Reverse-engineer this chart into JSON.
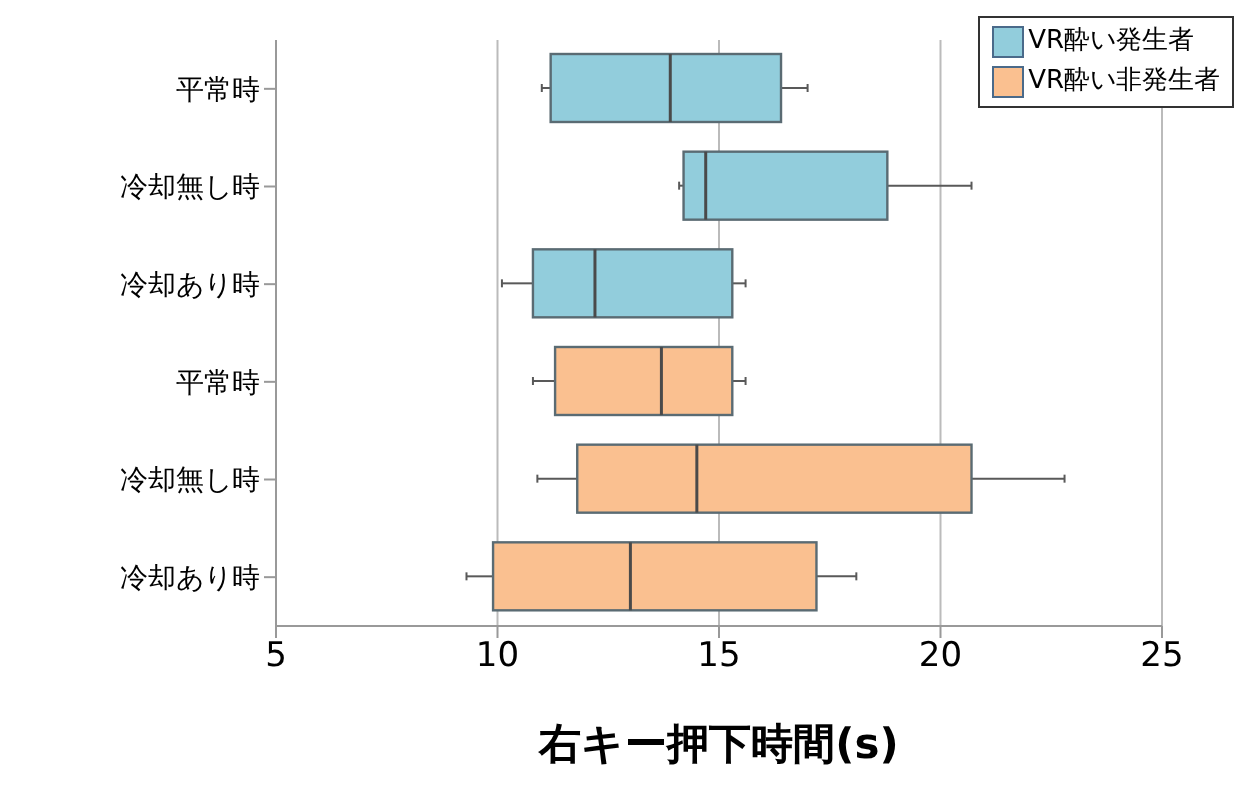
{
  "chart_data": {
    "type": "box",
    "orientation": "horizontal",
    "xlabel": "右キー押下時間(s)",
    "categories": [
      "平常時",
      "冷却無し時",
      "冷却あり時",
      "平常時",
      "冷却無し時",
      "冷却あり時"
    ],
    "series": [
      {
        "name": "VR酔い発生者",
        "color": "#92cddc",
        "boxes": [
          {
            "low": 11.0,
            "q1": 11.2,
            "median": 13.9,
            "q3": 16.4,
            "high": 17.0
          },
          {
            "low": 14.1,
            "q1": 14.2,
            "median": 14.7,
            "q3": 18.8,
            "high": 20.7
          },
          {
            "low": 10.1,
            "q1": 10.8,
            "median": 12.2,
            "q3": 15.3,
            "high": 15.6
          },
          null,
          null,
          null
        ]
      },
      {
        "name": "VR酔い非発生者",
        "color": "#fac090",
        "boxes": [
          null,
          null,
          null,
          {
            "low": 10.8,
            "q1": 11.3,
            "median": 13.7,
            "q3": 15.3,
            "high": 15.6
          },
          {
            "low": 10.9,
            "q1": 11.8,
            "median": 14.5,
            "q3": 20.7,
            "high": 22.8
          },
          {
            "low": 9.3,
            "q1": 9.9,
            "median": 13.0,
            "q3": 17.2,
            "high": 18.1
          }
        ]
      }
    ],
    "xlim": [
      5,
      25
    ],
    "xticks": [
      5,
      10,
      15,
      20,
      25
    ],
    "grid": "x",
    "legend": "top right"
  }
}
